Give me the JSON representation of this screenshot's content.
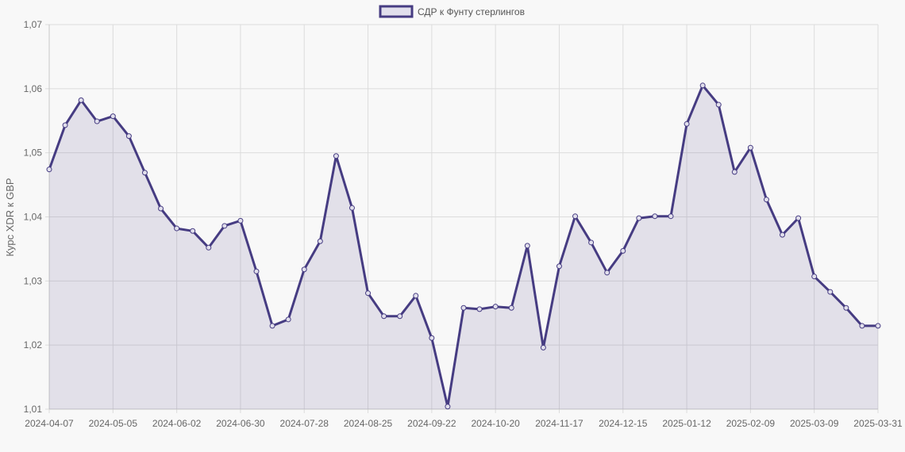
{
  "legend": {
    "label": "СДР к Фунту стерлингов"
  },
  "colors": {
    "line": "#463c82",
    "fill": "rgba(70,60,130,0.12)",
    "legend_fill": "#e1dfec",
    "grid": "#dcdcdc",
    "background": "#f8f8f8"
  },
  "chart_data": {
    "type": "line",
    "title": "",
    "xlabel": "",
    "ylabel": "Курс XDR к GBP",
    "ylim": [
      1.01,
      1.07
    ],
    "y_ticks": [
      "1,01",
      "1,02",
      "1,03",
      "1,04",
      "1,05",
      "1,06",
      "1,07"
    ],
    "x_tick_labels": [
      "2024-04-07",
      "2024-05-05",
      "2024-06-02",
      "2024-06-30",
      "2024-07-28",
      "2024-08-25",
      "2024-09-22",
      "2024-10-20",
      "2024-11-17",
      "2024-12-15",
      "2025-01-12",
      "2025-02-09",
      "2025-03-09",
      "2025-03-31"
    ],
    "x_tick_indices": [
      0,
      4,
      8,
      12,
      16,
      20,
      24,
      28,
      32,
      36,
      40,
      44,
      48,
      52
    ],
    "grid": true,
    "legend_position": "top",
    "filled": true,
    "series": [
      {
        "name": "СДР к Фунту стерлингов",
        "values": [
          1.0474,
          1.0543,
          1.0582,
          1.0549,
          1.0557,
          1.0526,
          1.0469,
          1.0413,
          1.0382,
          1.0378,
          1.0352,
          1.0386,
          1.0394,
          1.0315,
          1.023,
          1.024,
          1.0318,
          1.0362,
          1.0495,
          1.0414,
          1.0281,
          1.0245,
          1.0245,
          1.0277,
          1.0211,
          1.0104,
          1.0258,
          1.0256,
          1.026,
          1.0258,
          1.0355,
          1.0196,
          1.0323,
          1.0401,
          1.036,
          1.0313,
          1.0347,
          1.0398,
          1.0401,
          1.0401,
          1.0545,
          1.0605,
          1.0575,
          1.047,
          1.0508,
          1.0427,
          1.0372,
          1.0398,
          1.0307,
          1.0283,
          1.0258,
          1.023,
          1.023
        ]
      }
    ]
  }
}
